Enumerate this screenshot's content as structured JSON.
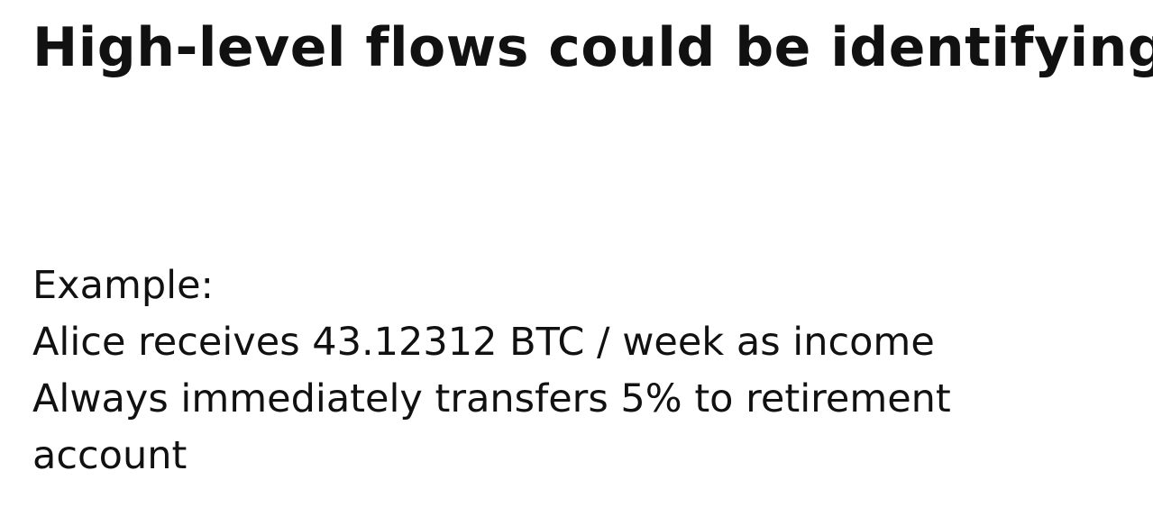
{
  "slide": {
    "title": "High-level flows could be identifying",
    "body": {
      "line1": "Example:",
      "line2": "Alice receives 43.12312 BTC / week as income",
      "line3": "Always immediately transfers 5% to retirement",
      "line4": "account"
    }
  }
}
